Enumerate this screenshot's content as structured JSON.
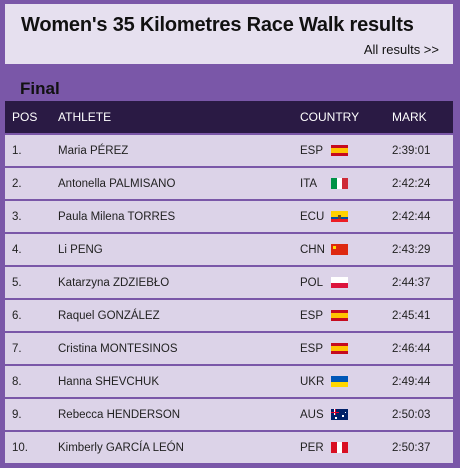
{
  "header": {
    "title": "Women's 35 Kilometres Race Walk results",
    "all_results_link": "All results >>"
  },
  "section": {
    "title": "Final"
  },
  "table": {
    "columns": {
      "pos": "POS",
      "athlete": "ATHLETE",
      "country": "COUNTRY",
      "mark": "MARK"
    },
    "rows": [
      {
        "pos": "1.",
        "athlete": "Maria PÉREZ",
        "country": "ESP",
        "flag": "spain-flag-icon",
        "mark": "2:39:01"
      },
      {
        "pos": "2.",
        "athlete": "Antonella PALMISANO",
        "country": "ITA",
        "flag": "italy-flag-icon",
        "mark": "2:42:24"
      },
      {
        "pos": "3.",
        "athlete": "Paula Milena TORRES",
        "country": "ECU",
        "flag": "ecuador-flag-icon",
        "mark": "2:42:44"
      },
      {
        "pos": "4.",
        "athlete": "Li PENG",
        "country": "CHN",
        "flag": "china-flag-icon",
        "mark": "2:43:29"
      },
      {
        "pos": "5.",
        "athlete": "Katarzyna ZDZIEBŁO",
        "country": "POL",
        "flag": "poland-flag-icon",
        "mark": "2:44:37"
      },
      {
        "pos": "6.",
        "athlete": "Raquel GONZÁLEZ",
        "country": "ESP",
        "flag": "spain-flag-icon",
        "mark": "2:45:41"
      },
      {
        "pos": "7.",
        "athlete": "Cristina MONTESINOS",
        "country": "ESP",
        "flag": "spain-flag-icon",
        "mark": "2:46:44"
      },
      {
        "pos": "8.",
        "athlete": "Hanna SHEVCHUK",
        "country": "UKR",
        "flag": "ukraine-flag-icon",
        "mark": "2:49:44"
      },
      {
        "pos": "9.",
        "athlete": "Rebecca HENDERSON",
        "country": "AUS",
        "flag": "australia-flag-icon",
        "mark": "2:50:03"
      },
      {
        "pos": "10.",
        "athlete": "Kimberly GARCÍA LEÓN",
        "country": "PER",
        "flag": "peru-flag-icon",
        "mark": "2:50:37"
      }
    ]
  },
  "colors": {
    "page_bg": "#7a57a8",
    "header_bg": "#e6e0ef",
    "table_head_bg": "#2a1a44",
    "row_bg": "#dcd3e8"
  }
}
